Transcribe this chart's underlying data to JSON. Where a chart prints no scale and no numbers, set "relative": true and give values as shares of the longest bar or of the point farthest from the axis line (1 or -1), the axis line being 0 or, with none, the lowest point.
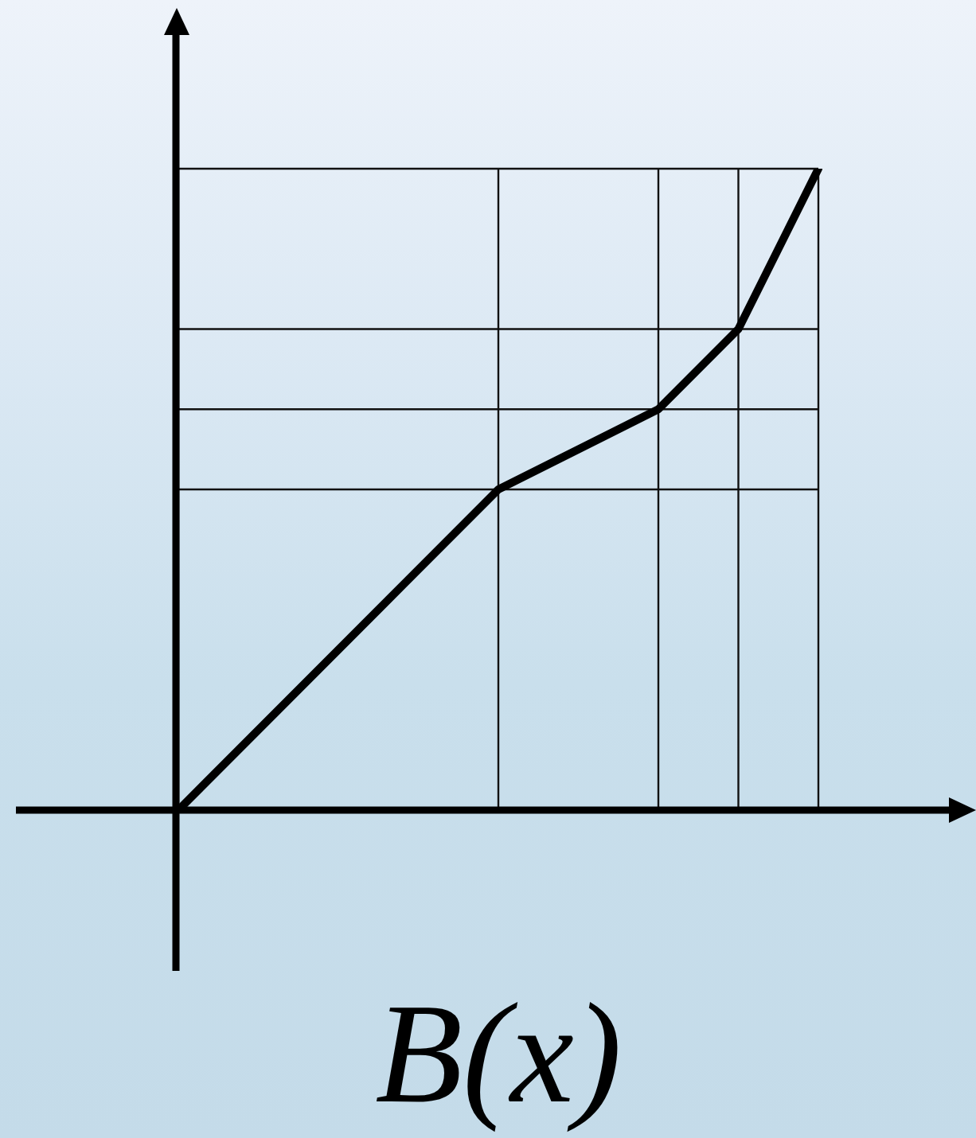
{
  "chart_data": {
    "type": "line",
    "title": "B(x)",
    "categories": [
      null,
      null,
      null,
      null,
      null,
      null,
      null,
      null,
      null
    ],
    "values": [
      0,
      null,
      null,
      null,
      0.5,
      null,
      0.625,
      0.75,
      1
    ],
    "color": "#000000",
    "relative": true,
    "grid": true
  }
}
